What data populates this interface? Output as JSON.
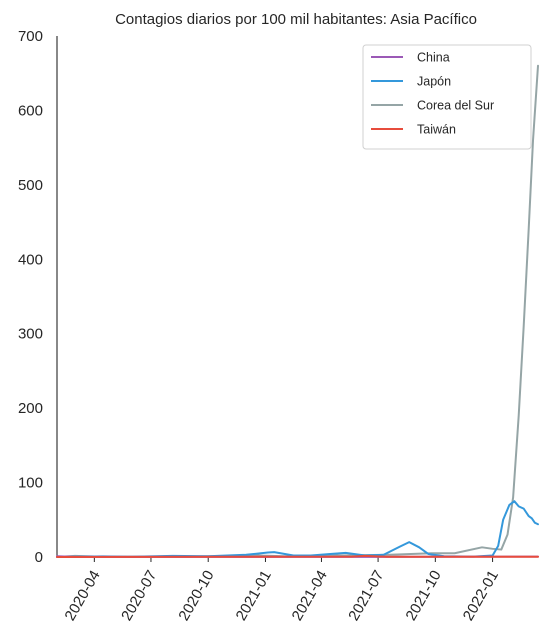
{
  "chart_data": {
    "type": "line",
    "title": "Contagios diarios por 100 mil habitantes: Asia Pacífico",
    "xlabel": "",
    "ylabel": "",
    "ylim": [
      0,
      700
    ],
    "y_ticks": [
      0,
      100,
      200,
      300,
      400,
      500,
      600,
      700
    ],
    "x_ticks": [
      "2020-04",
      "2020-07",
      "2020-10",
      "2021-01",
      "2021-04",
      "2021-07",
      "2021-10",
      "2022-01"
    ],
    "xlim": [
      "2020-02-01",
      "2022-03-15"
    ],
    "grid": false,
    "legend_position": "top-right",
    "series": [
      {
        "name": "China",
        "color": "#9b59b6",
        "points": [
          [
            "2020-02-01",
            1.0
          ],
          [
            "2020-03-01",
            0.2
          ],
          [
            "2021-06-01",
            0.1
          ],
          [
            "2022-03-15",
            0.5
          ]
        ]
      },
      {
        "name": "Japón",
        "color": "#3498db",
        "points": [
          [
            "2020-02-01",
            0
          ],
          [
            "2020-04-15",
            0.8
          ],
          [
            "2020-06-01",
            0.3
          ],
          [
            "2020-08-05",
            1.5
          ],
          [
            "2020-10-01",
            1.0
          ],
          [
            "2020-12-01",
            3
          ],
          [
            "2021-01-05",
            6
          ],
          [
            "2021-01-15",
            6.5
          ],
          [
            "2021-02-15",
            2
          ],
          [
            "2021-03-15",
            2
          ],
          [
            "2021-04-15",
            4
          ],
          [
            "2021-05-10",
            5.5
          ],
          [
            "2021-06-10",
            2
          ],
          [
            "2021-07-10",
            3
          ],
          [
            "2021-08-05",
            14
          ],
          [
            "2021-08-20",
            20
          ],
          [
            "2021-09-05",
            13
          ],
          [
            "2021-09-20",
            4
          ],
          [
            "2021-10-15",
            1
          ],
          [
            "2021-12-01",
            0.5
          ],
          [
            "2022-01-01",
            2
          ],
          [
            "2022-01-10",
            15
          ],
          [
            "2022-01-18",
            50
          ],
          [
            "2022-01-28",
            70
          ],
          [
            "2022-02-05",
            75
          ],
          [
            "2022-02-12",
            68
          ],
          [
            "2022-02-20",
            65
          ],
          [
            "2022-02-28",
            55
          ],
          [
            "2022-03-05",
            52
          ],
          [
            "2022-03-10",
            46
          ],
          [
            "2022-03-15",
            44
          ]
        ]
      },
      {
        "name": "Corea del Sur",
        "color": "#95a5a6",
        "points": [
          [
            "2020-02-01",
            0
          ],
          [
            "2020-03-01",
            1.5
          ],
          [
            "2020-04-15",
            0.3
          ],
          [
            "2020-09-01",
            0.5
          ],
          [
            "2020-12-20",
            2
          ],
          [
            "2021-02-01",
            1
          ],
          [
            "2021-07-20",
            3
          ],
          [
            "2021-09-25",
            5
          ],
          [
            "2021-11-01",
            5
          ],
          [
            "2021-12-15",
            13
          ],
          [
            "2022-01-01",
            11
          ],
          [
            "2022-01-15",
            10
          ],
          [
            "2022-01-25",
            30
          ],
          [
            "2022-02-03",
            80
          ],
          [
            "2022-02-12",
            190
          ],
          [
            "2022-02-20",
            310
          ],
          [
            "2022-02-28",
            440
          ],
          [
            "2022-03-07",
            560
          ],
          [
            "2022-03-15",
            660
          ]
        ]
      },
      {
        "name": "Taiwán",
        "color": "#e74c3c",
        "points": [
          [
            "2020-02-01",
            0
          ],
          [
            "2021-05-20",
            0.5
          ],
          [
            "2021-06-10",
            1.5
          ],
          [
            "2021-07-15",
            0.3
          ],
          [
            "2022-03-15",
            0.3
          ]
        ]
      }
    ]
  }
}
